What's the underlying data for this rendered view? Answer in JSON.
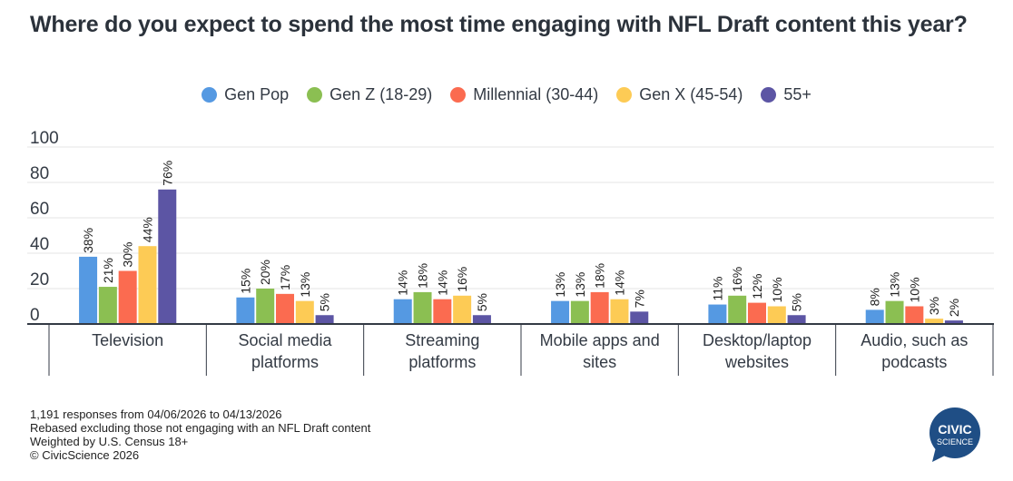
{
  "title": "Where do you expect to spend the most time engaging with NFL Draft content this year?",
  "legend": [
    {
      "name": "Gen Pop",
      "color": "#5599e2"
    },
    {
      "name": "Gen Z (18-29)",
      "color": "#8bbf52"
    },
    {
      "name": "Millennial (30-44)",
      "color": "#fb6b50"
    },
    {
      "name": "Gen X (45-54)",
      "color": "#fdcb55"
    },
    {
      "name": "55+",
      "color": "#5c55a4"
    }
  ],
  "chart_data": {
    "type": "bar",
    "title": "Where do you expect to spend the most time engaging with NFL Draft content this year?",
    "xlabel": "",
    "ylabel": "",
    "ylim": [
      0,
      100
    ],
    "yticks": [
      0,
      20,
      40,
      60,
      80,
      100
    ],
    "grid": true,
    "legend_position": "top-center",
    "categories": [
      [
        "Television"
      ],
      [
        "Social media",
        "platforms"
      ],
      [
        "Streaming",
        "platforms"
      ],
      [
        "Mobile apps and",
        "sites"
      ],
      [
        "Desktop/laptop",
        "websites"
      ],
      [
        "Audio, such as",
        "podcasts"
      ]
    ],
    "series": [
      {
        "name": "Gen Pop",
        "color": "#5599e2",
        "values": [
          38,
          15,
          14,
          13,
          11,
          8
        ]
      },
      {
        "name": "Gen Z (18-29)",
        "color": "#8bbf52",
        "values": [
          21,
          20,
          18,
          13,
          16,
          13
        ]
      },
      {
        "name": "Millennial (30-44)",
        "color": "#fb6b50",
        "values": [
          30,
          17,
          14,
          18,
          12,
          10
        ]
      },
      {
        "name": "Gen X (45-54)",
        "color": "#fdcb55",
        "values": [
          44,
          13,
          16,
          14,
          10,
          3
        ]
      },
      {
        "name": "55+",
        "color": "#5c55a4",
        "values": [
          76,
          5,
          5,
          7,
          5,
          2
        ]
      }
    ],
    "value_suffix": "%"
  },
  "notes": [
    "1,191 responses from 04/06/2026 to 04/13/2026",
    "Rebased excluding those not engaging with an NFL Draft content",
    "Weighted by U.S. Census 18+",
    "© CivicScience 2026"
  ],
  "logo": {
    "line1": "CIVIC",
    "line2": "SCIENCE",
    "color": "#1f4e85"
  }
}
